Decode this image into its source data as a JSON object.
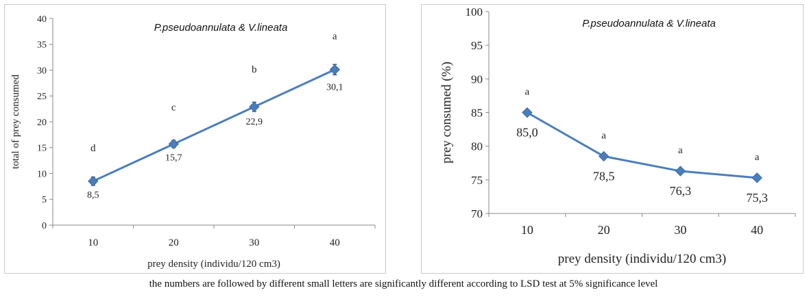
{
  "chart_data": [
    {
      "type": "line",
      "title": "P.pseudoannulata & V.lineata",
      "xlabel": "prey density (individu/120 cm3)",
      "ylabel": "total of prey consumed",
      "categories": [
        "10",
        "20",
        "30",
        "40"
      ],
      "ylim": [
        0,
        40
      ],
      "yticks": [
        "0",
        "5",
        "10",
        "15",
        "20",
        "25",
        "30",
        "35",
        "40"
      ],
      "grid": false,
      "series": [
        {
          "values": [
            8.5,
            15.7,
            22.9,
            30.1
          ],
          "errors": [
            0.8,
            0.7,
            0.9,
            1.0
          ],
          "value_labels": [
            "8,5",
            "15,7",
            "22,9",
            "30,1"
          ],
          "letters": [
            "d",
            "c",
            "b",
            "a"
          ],
          "color": "#4a7ebb",
          "marker": "diamond"
        }
      ]
    },
    {
      "type": "line",
      "title": "P.pseudoannulata & V.lineata",
      "xlabel": "prey density (individu/120 cm3)",
      "ylabel": "prey consumed (%)",
      "categories": [
        "10",
        "20",
        "30",
        "40"
      ],
      "ylim": [
        70,
        100
      ],
      "yticks": [
        "70",
        "75",
        "80",
        "85",
        "90",
        "95",
        "100"
      ],
      "grid": false,
      "series": [
        {
          "values": [
            85.0,
            78.5,
            76.3,
            75.3
          ],
          "value_labels": [
            "85,0",
            "78,5",
            "76,3",
            "75,3"
          ],
          "letters": [
            "a",
            "a",
            "a",
            "a"
          ],
          "color": "#4a7ebb",
          "marker": "diamond"
        }
      ]
    }
  ],
  "caption": "the numbers are followed by different small letters are significantly different according to LSD test at 5% significance level"
}
